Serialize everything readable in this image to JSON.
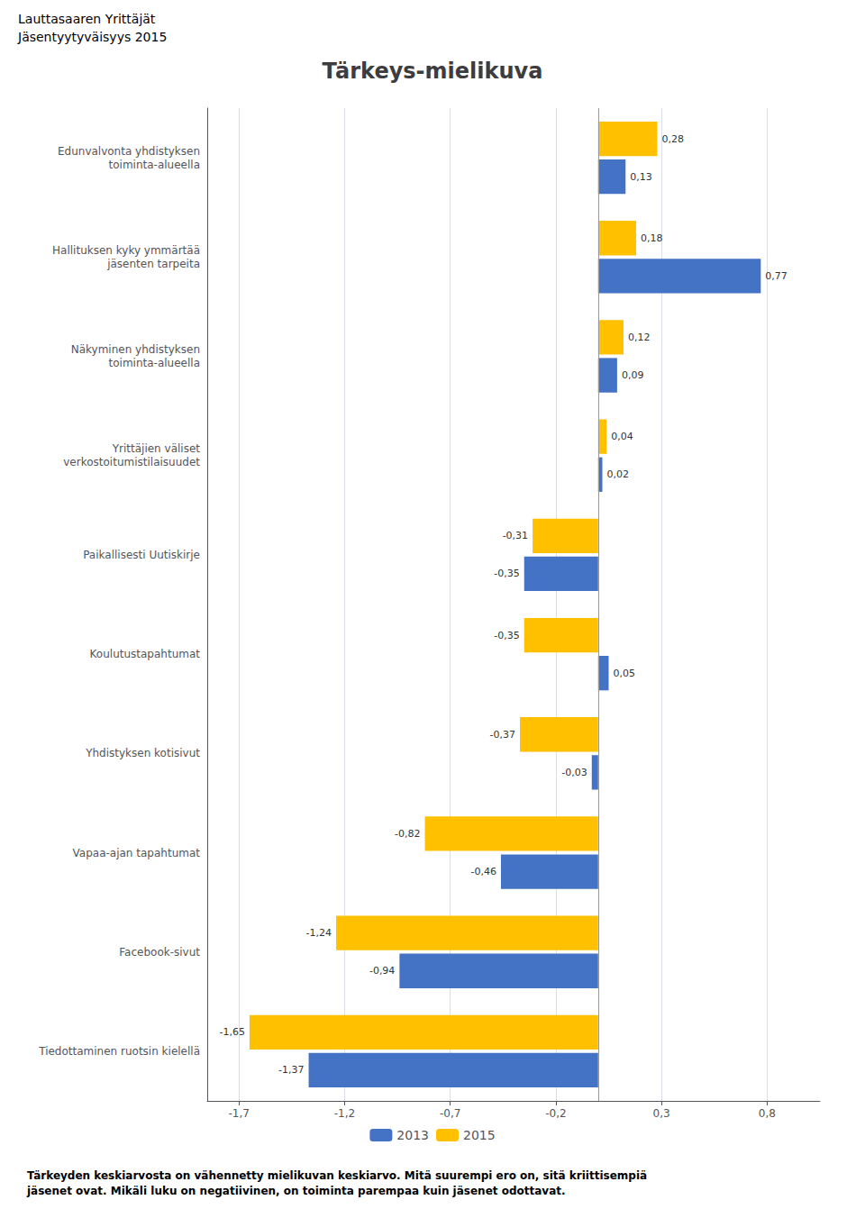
{
  "chart_data": {
    "type": "bar",
    "orientation": "horizontal",
    "title": "Tärkeys-mielikuva",
    "annotations": [
      "Lauttasaaren Yrittäjät",
      "Jäsentyytyväisyys 2015",
      "Tärkeyden keskiarvosta on vähennetty mielikuvan keskiarvo. Mitä suurempi ero on, sitä kriittisempiä\njäsenet ovat. Mikäli luku on negatiivinen, on toiminta parempaa kuin jäsenet odottavat."
    ],
    "categories": [
      "Edunvalvonta yhdistyksen\ntoiminta-alueella",
      "Hallituksen kyky ymmärtää\njäsenten tarpeita",
      "Näkyminen yhdistyksen\ntoiminta-alueella",
      "Yrittäjien väliset\nverkostoitumistilaisuudet",
      "Paikallisesti Uutiskirje",
      "Koulutustapahtumat",
      "Yhdistyksen kotisivut",
      "Vapaa-ajan tapahtumat",
      "Facebook-sivut",
      "Tiedottaminen ruotsin kielellä"
    ],
    "series": [
      {
        "name": "2015",
        "color": "#FFC000",
        "values": [
          0.28,
          0.18,
          0.12,
          0.04,
          -0.31,
          -0.35,
          -0.37,
          -0.82,
          -1.24,
          -1.65
        ],
        "value_labels": [
          "0,28",
          "0,18",
          "0,12",
          "0,04",
          "-0,31",
          "-0,35",
          "-0,37",
          "-0,82",
          "-1,24",
          "-1,65"
        ]
      },
      {
        "name": "2013",
        "color": "#4472C4",
        "values": [
          0.13,
          0.77,
          0.09,
          0.02,
          -0.35,
          0.05,
          -0.03,
          -0.46,
          -0.94,
          -1.37
        ],
        "value_labels": [
          "0,13",
          "0,77",
          "0,09",
          "0,02",
          "-0,35",
          "0,05",
          "-0,03",
          "-0,46",
          "-0,94",
          "-1,37"
        ]
      }
    ],
    "xlim": [
      -1.85,
      1.05
    ],
    "xticks": [
      {
        "value": -1.7,
        "label": "-1,7"
      },
      {
        "value": -1.2,
        "label": "-1,2"
      },
      {
        "value": -0.7,
        "label": "-0,7"
      },
      {
        "value": -0.2,
        "label": "-0,2"
      },
      {
        "value": 0.3,
        "label": "0,3"
      },
      {
        "value": 0.8,
        "label": "0,8"
      }
    ],
    "grid": true,
    "legend": "bottom",
    "data_labels": true
  }
}
